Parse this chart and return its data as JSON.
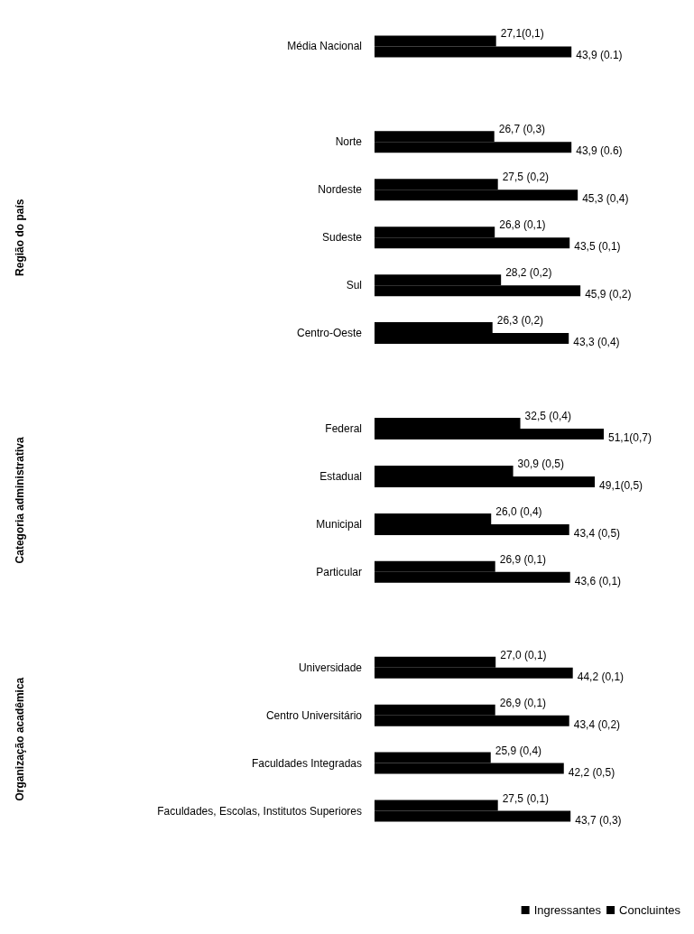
{
  "chart_data": {
    "type": "bar",
    "orientation": "horizontal",
    "categories": [
      "Média Nacional",
      null,
      "Norte",
      "Nordeste",
      "Sudeste",
      "Sul",
      "Centro-Oeste",
      null,
      "Federal",
      "Estadual",
      "Municipal",
      "Particular",
      null,
      "Universidade",
      "Centro Universitário",
      "Faculdades Integradas",
      "Faculdades, Escolas, Institutos Superiores"
    ],
    "series": [
      {
        "name": "Ingressantes",
        "color": "#000000",
        "values": [
          27.1,
          null,
          26.7,
          27.5,
          26.8,
          28.2,
          26.3,
          null,
          32.5,
          30.9,
          26.0,
          26.9,
          null,
          27.0,
          26.9,
          25.9,
          27.5
        ],
        "value_labels": [
          "27,1(0,1)",
          null,
          "26,7 (0,3)",
          "27,5 (0,2)",
          "26,8 (0,1)",
          "28,2 (0,2)",
          "26,3 (0,2)",
          null,
          "32,5 (0,4)",
          "30,9 (0,5)",
          "26,0 (0,4)",
          "26,9 (0,1)",
          null,
          "27,0 (0,1)",
          "26,9 (0,1)",
          "25,9 (0,4)",
          "27,5 (0,1)"
        ]
      },
      {
        "name": "Concluintes",
        "color": "#000000",
        "values": [
          43.9,
          null,
          43.9,
          45.3,
          43.5,
          45.9,
          43.3,
          null,
          51.1,
          49.1,
          43.4,
          43.6,
          null,
          44.2,
          43.4,
          42.2,
          43.7
        ],
        "value_labels": [
          "43,9 (0.1)",
          null,
          "43,9 (0.6)",
          "45,3 (0,4)",
          "43,5 (0,1)",
          "45,9 (0,2)",
          "43,3 (0,4)",
          null,
          "51,1(0,7)",
          "49,1(0,5)",
          "43,4 (0,5)",
          "43,6 (0,1)",
          null,
          "44,2 (0,1)",
          "43,4 (0,2)",
          "42,2 (0,5)",
          "43,7 (0,3)"
        ]
      }
    ],
    "annotations": [
      "Região do país",
      "Categoria administrativa",
      "Organização acadêmica"
    ],
    "legend": "bottom right"
  }
}
